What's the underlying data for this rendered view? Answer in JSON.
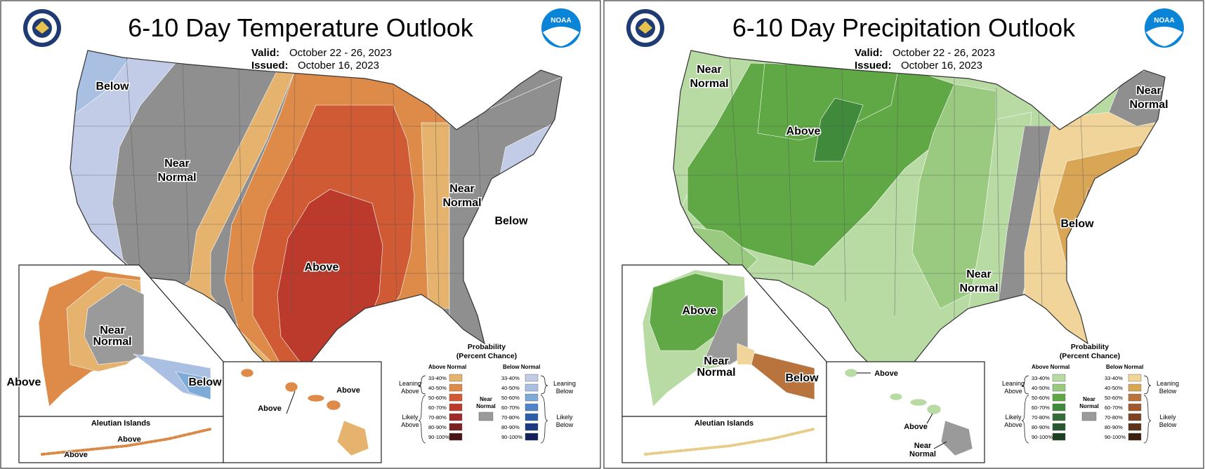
{
  "panels": [
    {
      "id": "temperature",
      "title": "6-10 Day Temperature Outlook",
      "valid_key": "Valid:",
      "valid_value": "October 22 - 26, 2023",
      "issued_key": "Issued:",
      "issued_value": "October 16, 2023",
      "map_labels": {
        "west": "Below",
        "center_line1": "Near",
        "center_line2": "Normal",
        "east_line1": "Near",
        "east_line2": "Normal",
        "southeast": "Below",
        "main": "Above"
      },
      "alaska_labels": {
        "center_line1": "Near",
        "center_line2": "Normal",
        "west": "Above",
        "east": "Below",
        "aleutian_top": "Above",
        "aleutian_bottom": "Above"
      },
      "hawaii_labels": {
        "top": "Above",
        "bottom": "Above"
      }
    },
    {
      "id": "precipitation",
      "title": "6-10 Day Precipitation Outlook",
      "valid_key": "Valid:",
      "valid_value": "October 22 - 26, 2023",
      "issued_key": "Issued:",
      "issued_value": "October 16, 2023",
      "map_labels": {
        "nw_line1": "Near",
        "nw_line2": "Normal",
        "core": "Above",
        "ne_line1": "Near",
        "ne_line2": "Normal",
        "southeast": "Below",
        "se_near_line1": "Near",
        "se_near_line2": "Normal"
      },
      "alaska_labels": {
        "west": "Above",
        "center_line1": "Near",
        "center_line2": "Normal",
        "east": "Below"
      },
      "hawaii_labels": {
        "top": "Above",
        "middle": "Above",
        "bottom_line1": "Near",
        "bottom_line2": "Normal"
      }
    }
  ],
  "inset": {
    "aleutian_title": "Aleutian Islands"
  },
  "legend": {
    "title_line1": "Probability",
    "title_line2": "(Percent Chance)",
    "above_header": "Above Normal",
    "below_header": "Below Normal",
    "near_line1": "Near",
    "near_line2": "Normal",
    "leaning_line1": "Leaning",
    "leaning_above_line2": "Above",
    "leaning_below_line2": "Below",
    "likely_line1": "Likely",
    "likely_above_line2": "Above",
    "likely_below_line2": "Below",
    "pct_labels": [
      "33-40%",
      "40-50%",
      "50-60%",
      "60-70%",
      "70-80%",
      "80-90%",
      "90-100%"
    ]
  },
  "colors": {
    "temp_above": [
      "#e6b36e",
      "#de8a48",
      "#cf5a33",
      "#bb3a2c",
      "#a02a2a",
      "#7a2222",
      "#4a1414"
    ],
    "temp_below": [
      "#c3cce7",
      "#a9c0e3",
      "#7eaad8",
      "#4f85c6",
      "#2b5fa7",
      "#1b3a80",
      "#14205c"
    ],
    "precip_above": [
      "#b8dba4",
      "#99ca80",
      "#5fa845",
      "#3f8a3b",
      "#336c36",
      "#285630",
      "#1c3f22"
    ],
    "precip_below": [
      "#f0d49a",
      "#d9a655",
      "#b9743e",
      "#9e5a2c",
      "#7c4424",
      "#5c3319",
      "#3d2110"
    ],
    "near_normal": "#9a9a9a",
    "near_normal_map": "#8f8f8f",
    "white": "#ffffff"
  }
}
